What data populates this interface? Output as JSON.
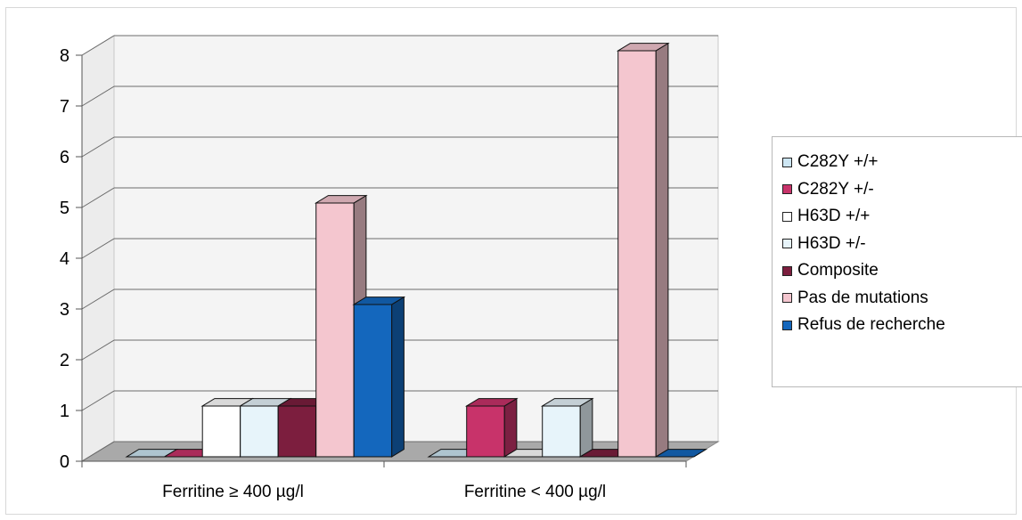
{
  "chart_data": {
    "type": "bar",
    "title": "",
    "xlabel": "",
    "ylabel": "",
    "ylim": [
      0,
      8
    ],
    "yticks": [
      "0",
      "1",
      "2",
      "3",
      "4",
      "5",
      "6",
      "7",
      "8"
    ],
    "categories": [
      "Ferritine ≥ 400 µg/l",
      "Ferritine < 400 µg/l"
    ],
    "series": [
      {
        "name": "C282Y +/+",
        "color": "#cde6f3",
        "values": [
          0,
          0
        ]
      },
      {
        "name": "C282Y +/-",
        "color": "#c8336a",
        "values": [
          0,
          1
        ]
      },
      {
        "name": "H63D +/+",
        "color": "#ffffff",
        "values": [
          1,
          0
        ]
      },
      {
        "name": "H63D +/-",
        "color": "#e7f4fa",
        "values": [
          1,
          1
        ]
      },
      {
        "name": "Composite",
        "color": "#7c1e3e",
        "values": [
          1,
          0
        ]
      },
      {
        "name": "Pas de mutations",
        "color": "#f4c6cf",
        "values": [
          5,
          8
        ]
      },
      {
        "name": "Refus de recherche",
        "color": "#1467bd",
        "values": [
          3,
          0
        ]
      }
    ],
    "grid": true,
    "three_d": true,
    "legend_position": "right"
  }
}
